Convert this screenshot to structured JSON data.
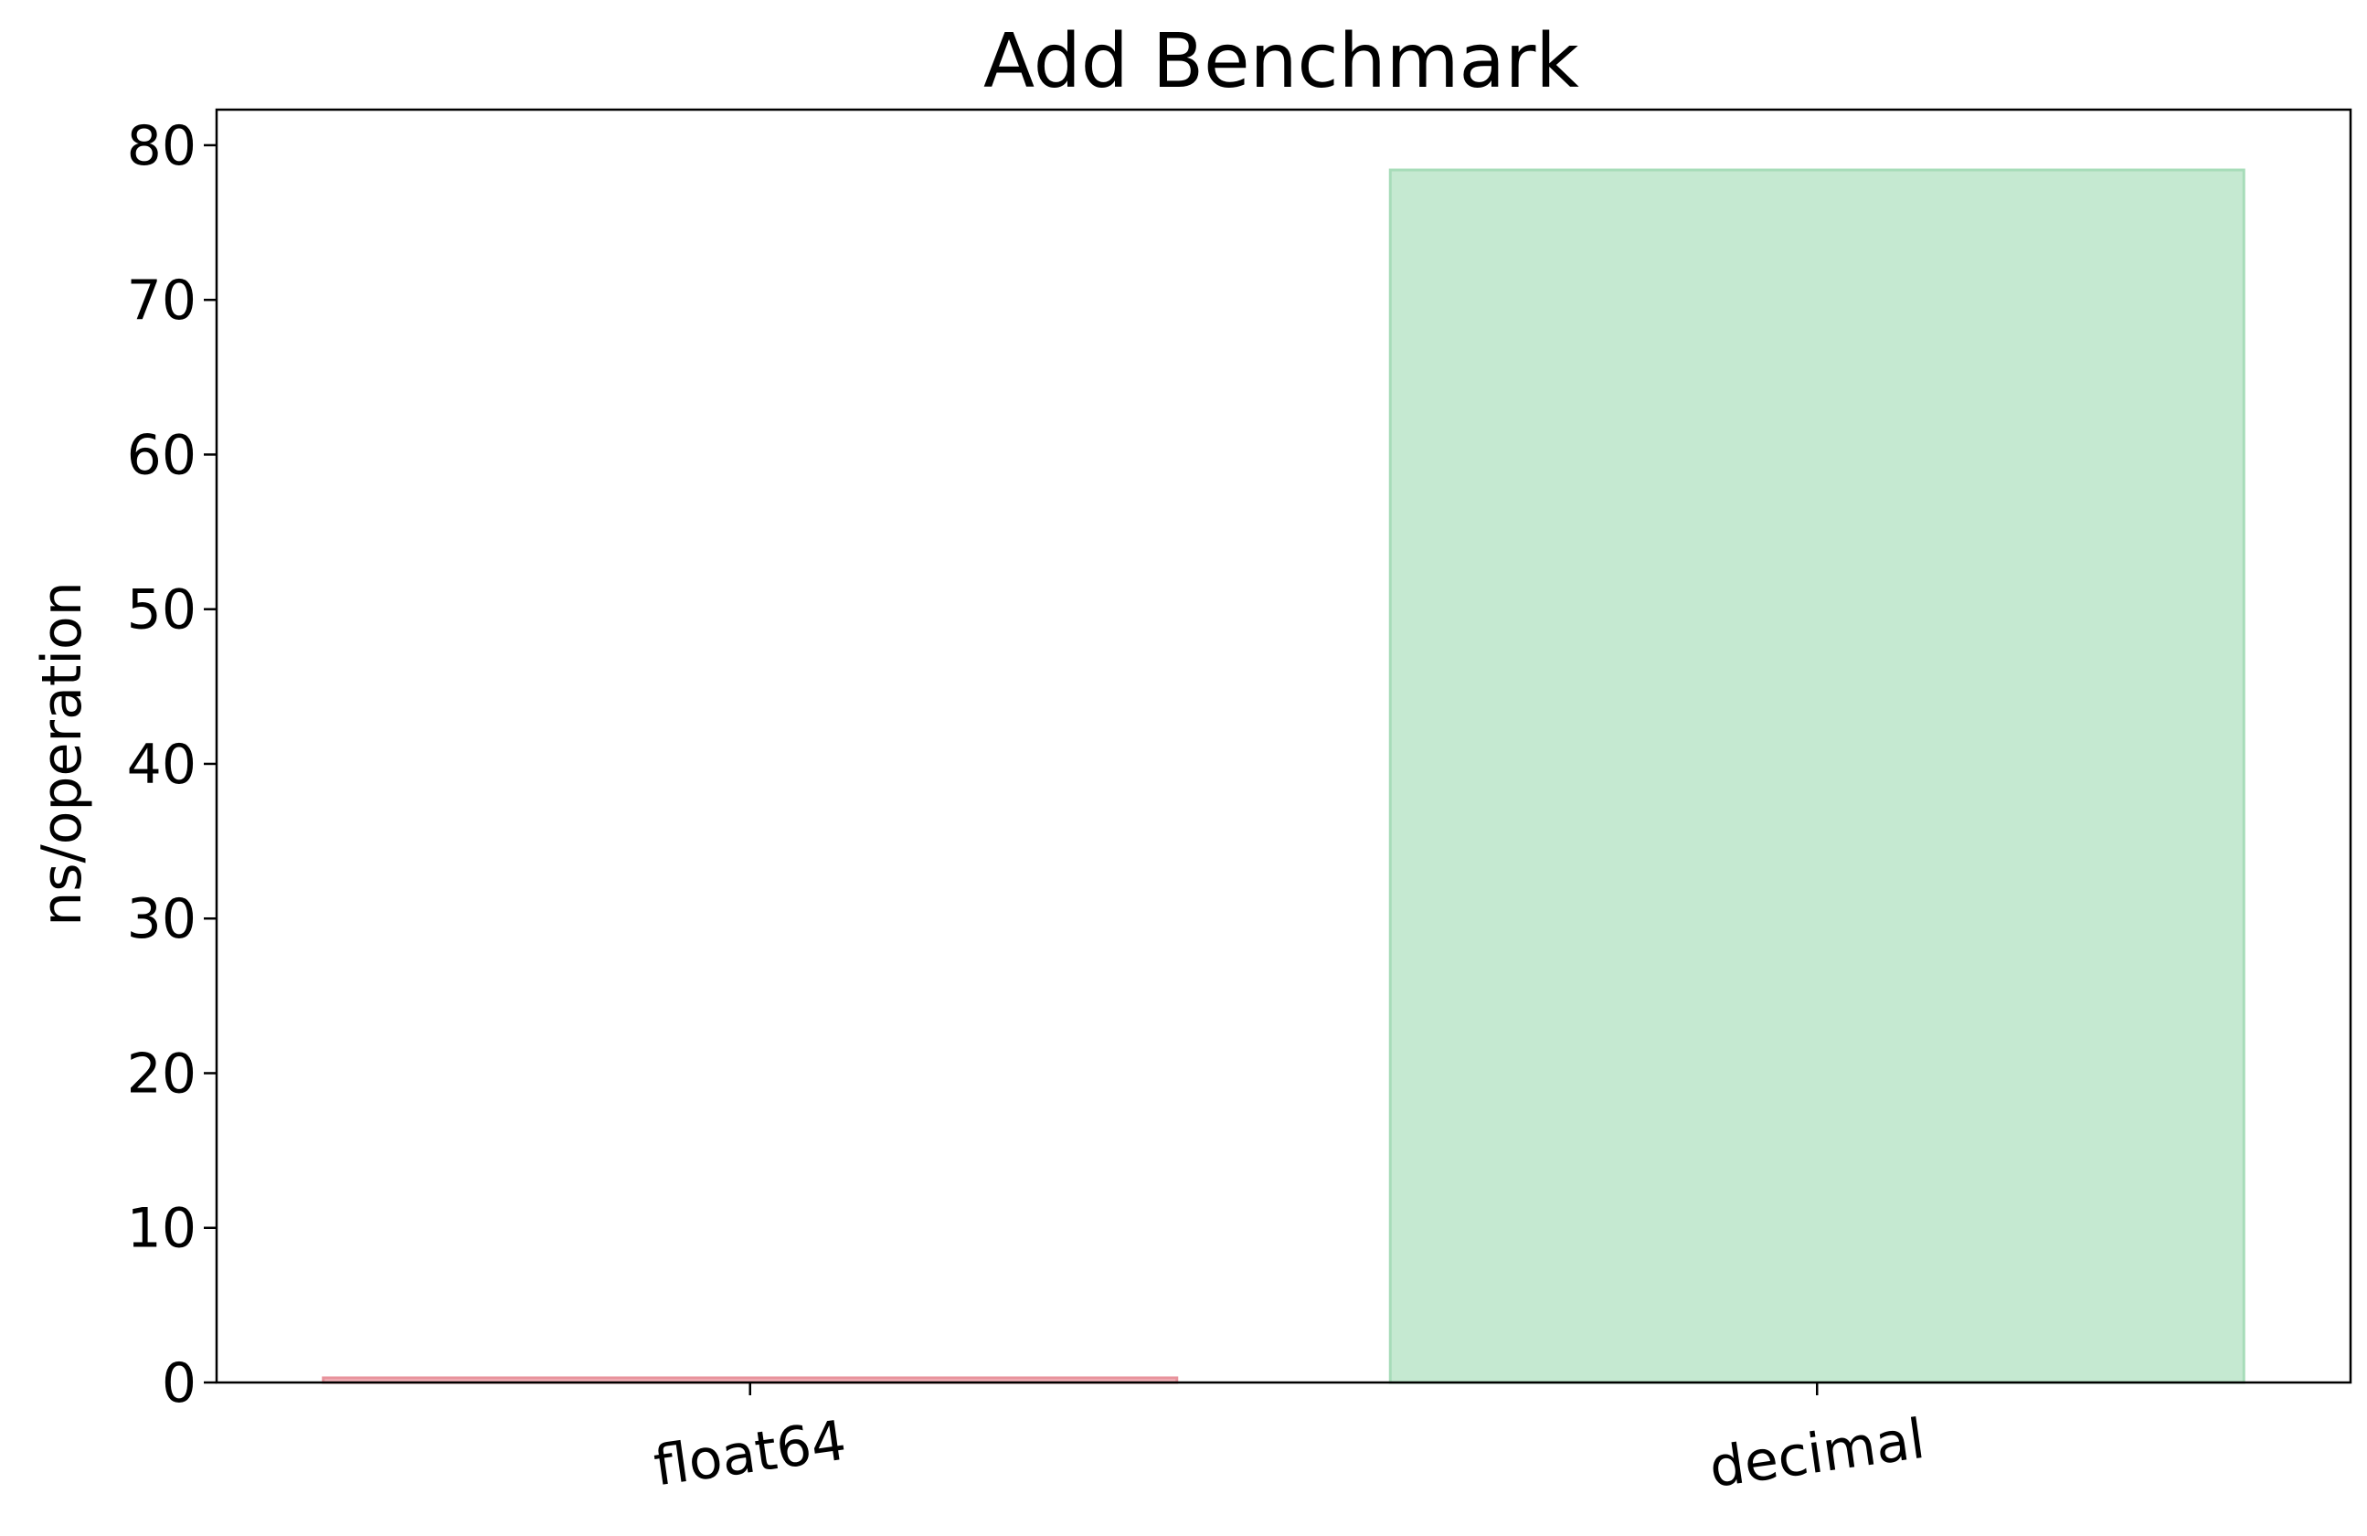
{
  "chart_data": {
    "type": "bar",
    "title": "Add Benchmark",
    "xlabel": "",
    "ylabel": "ns/operation",
    "categories": [
      "float64",
      "decimal"
    ],
    "values": [
      0.3,
      78.4
    ],
    "bar_colors": [
      "#f4b6bd",
      "#c5e9d1"
    ],
    "bar_edge_colors": [
      "#e8939c",
      "#a7dcb9"
    ],
    "ylim": [
      0,
      82.3
    ],
    "yticks": [
      0,
      10,
      20,
      30,
      40,
      50,
      60,
      70,
      80
    ],
    "ytick_labels": [
      "0",
      "10",
      "20",
      "30",
      "40",
      "50",
      "60",
      "70",
      "80"
    ],
    "xtick_rotation_deg": -8,
    "grid": false,
    "legend": false
  }
}
